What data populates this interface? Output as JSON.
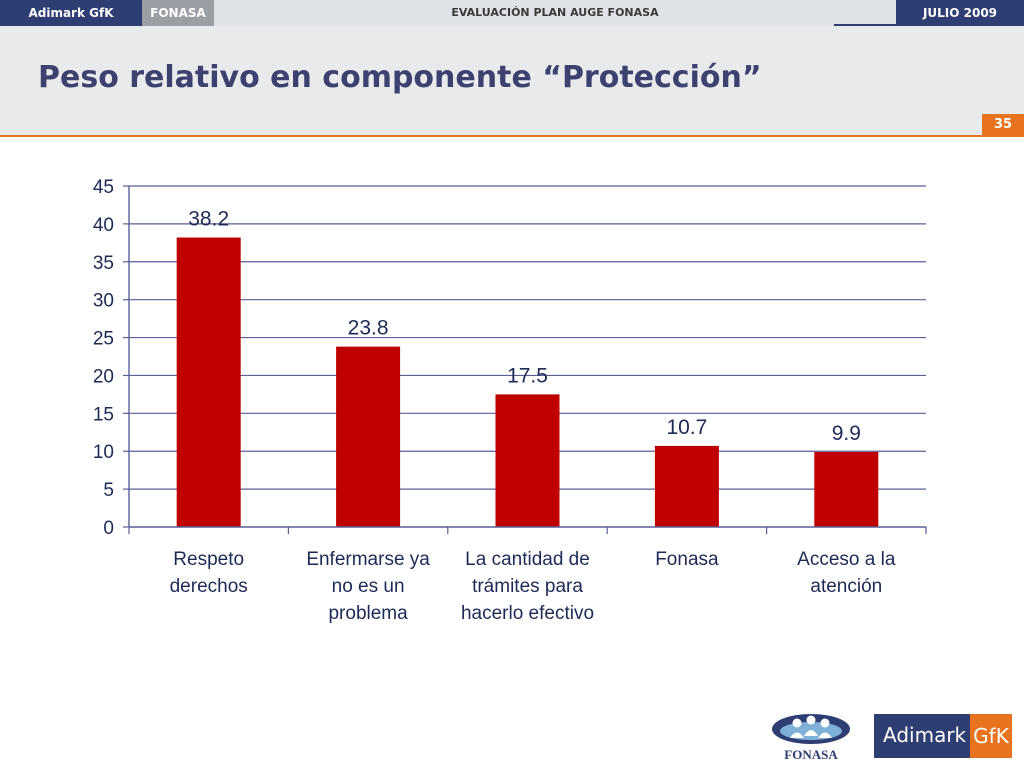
{
  "header": {
    "brand": "Adimark GfK",
    "client": "FONASA",
    "section": "EVALUACIÓN PLAN AUGE FONASA",
    "date": "JULIO 2009"
  },
  "slide": {
    "title": "Peso relativo en componente “Protección”",
    "page_number": "35"
  },
  "logos": {
    "fonasa": "FONASA",
    "adimark_text": "Adimark",
    "adimark_gfk": "GfK"
  },
  "colors": {
    "bar": "#c00000",
    "navy": "#2e3d72",
    "accent": "#e8731f",
    "grid": "#5a5f96",
    "axis_text": "#1e2a56"
  },
  "chart_data": {
    "type": "bar",
    "categories": [
      [
        "Respeto",
        "derechos"
      ],
      [
        "Enfermarse ya",
        "no es un",
        "problema"
      ],
      [
        "La cantidad de",
        "trámites para",
        "hacerlo efectivo"
      ],
      [
        "Fonasa"
      ],
      [
        "Acceso a la",
        "atención"
      ]
    ],
    "values": [
      38.2,
      23.8,
      17.5,
      10.7,
      9.9
    ],
    "value_labels": [
      "38.2",
      "23.8",
      "17.5",
      "10.7",
      "9.9"
    ],
    "ylim": [
      0,
      45
    ],
    "yticks": [
      0,
      5,
      10,
      15,
      20,
      25,
      30,
      35,
      40,
      45
    ],
    "grid": true,
    "legend": "none"
  }
}
